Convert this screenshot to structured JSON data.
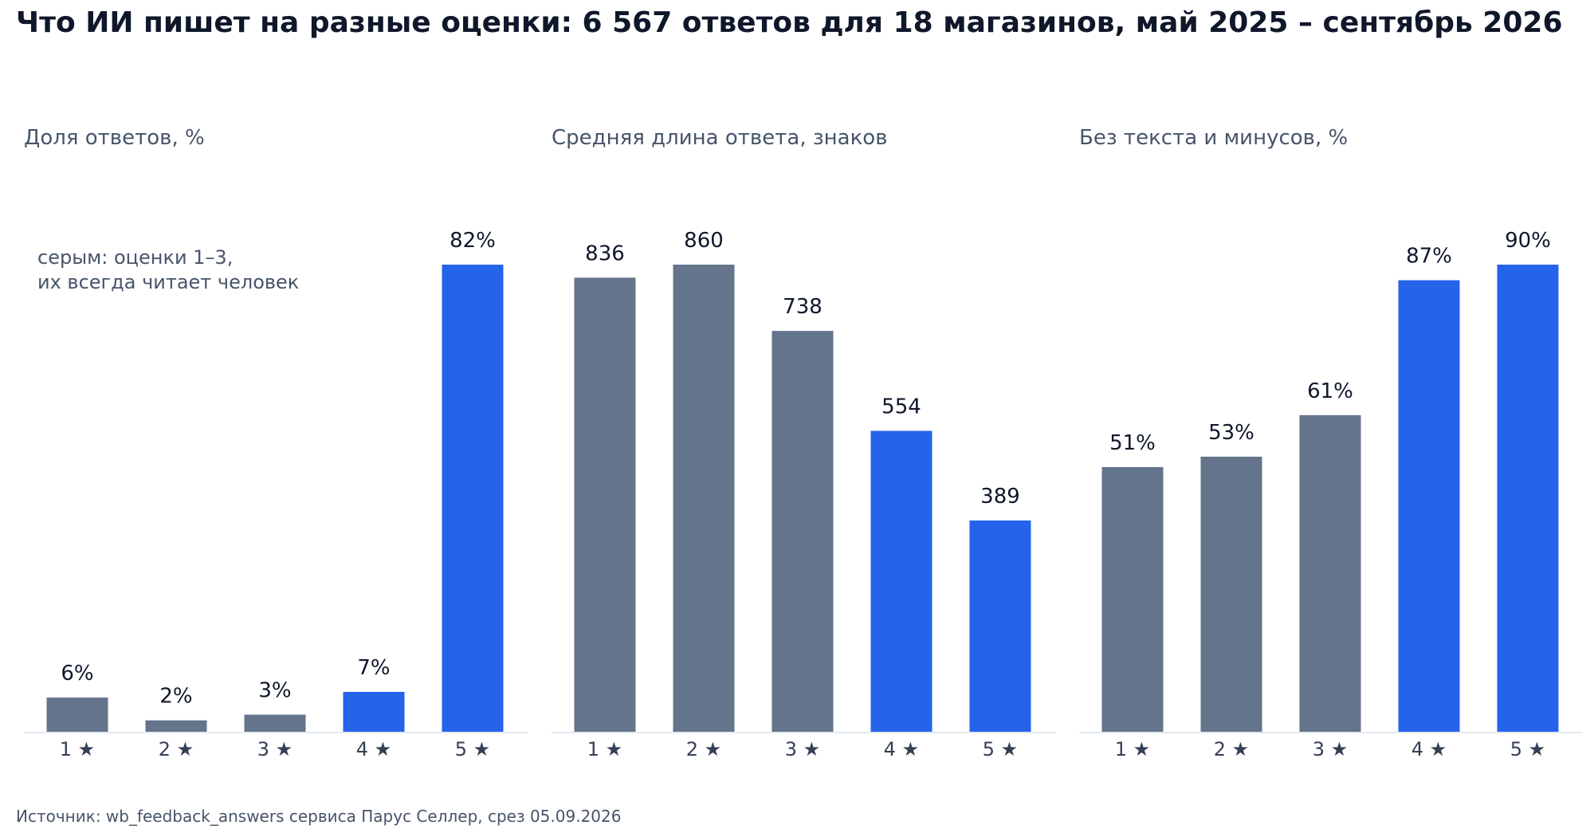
{
  "title": "Что ИИ пишет на разные оценки: 6 567 ответов для 18 магазинов, май 2025 – сентябрь 2026",
  "source": "Источник: wb_feedback_answers сервиса Парус Селлер, срез 05.09.2026",
  "colors": {
    "human": "#64748b",
    "ai": "#2563eb",
    "axis": "#e2e8f0"
  },
  "chart_data": [
    {
      "type": "bar",
      "title": "Доля ответов, %",
      "categories": [
        "1 ★",
        "2 ★",
        "3 ★",
        "4 ★",
        "5 ★"
      ],
      "values": [
        6,
        2,
        3,
        7,
        82
      ],
      "value_labels": [
        "6%",
        "2%",
        "3%",
        "7%",
        "82%"
      ],
      "bar_colors": [
        "#64748b",
        "#64748b",
        "#64748b",
        "#2563eb",
        "#2563eb"
      ],
      "annotation": [
        "серым: оценки 1–3,",
        "их всегда читает человек"
      ],
      "ylim": [
        0,
        82
      ]
    },
    {
      "type": "bar",
      "title": "Средняя длина ответа, знаков",
      "categories": [
        "1 ★",
        "2 ★",
        "3 ★",
        "4 ★",
        "5 ★"
      ],
      "values": [
        836,
        860,
        738,
        554,
        389
      ],
      "value_labels": [
        "836",
        "860",
        "738",
        "554",
        "389"
      ],
      "bar_colors": [
        "#64748b",
        "#64748b",
        "#64748b",
        "#2563eb",
        "#2563eb"
      ],
      "ylim": [
        0,
        860
      ]
    },
    {
      "type": "bar",
      "title": "Без текста и минусов, %",
      "categories": [
        "1 ★",
        "2 ★",
        "3 ★",
        "4 ★",
        "5 ★"
      ],
      "values": [
        51,
        53,
        61,
        87,
        90
      ],
      "value_labels": [
        "51%",
        "53%",
        "61%",
        "87%",
        "90%"
      ],
      "bar_colors": [
        "#64748b",
        "#64748b",
        "#64748b",
        "#2563eb",
        "#2563eb"
      ],
      "ylim": [
        0,
        90
      ]
    }
  ]
}
